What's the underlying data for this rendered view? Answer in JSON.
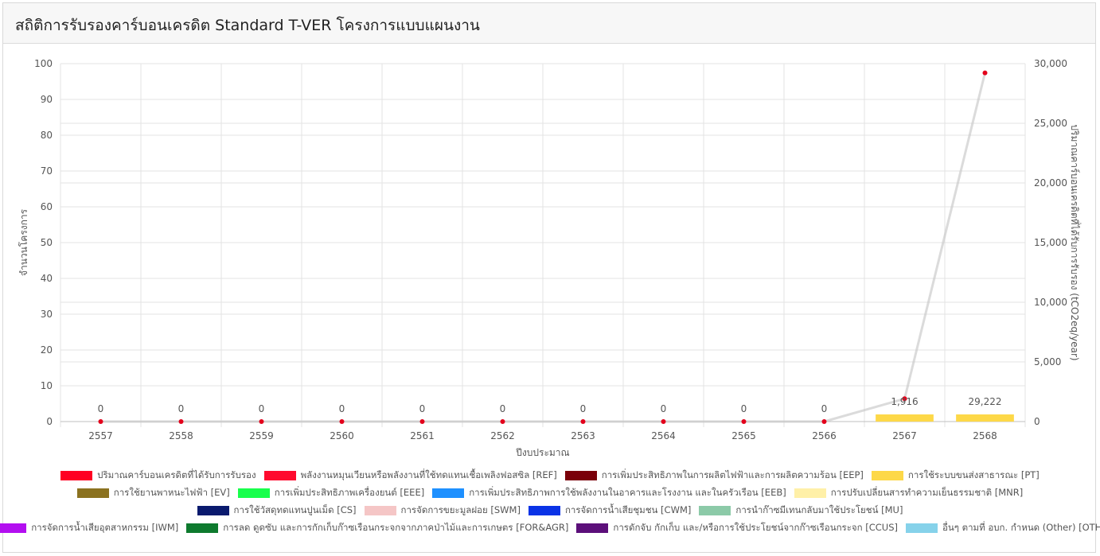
{
  "page": {
    "title": "สถิติการรับรองคาร์บอนเครดิต Standard T-VER โครงการแบบแผนงาน"
  },
  "chart_data": {
    "type": "bar",
    "categories": [
      "2557",
      "2558",
      "2559",
      "2560",
      "2561",
      "2562",
      "2563",
      "2564",
      "2565",
      "2566",
      "2567",
      "2568"
    ],
    "xlabel": "ปีงบประมาณ",
    "ylabel": "จำนวนโครงการ",
    "y2label": "ปริมาณคาร์บอนเครดิตที่ได้รับการรับรอง (tCO2eq/year)",
    "ylim": [
      0,
      100
    ],
    "y2lim": [
      0,
      30000
    ],
    "yticks": [
      "0",
      "10",
      "20",
      "30",
      "40",
      "50",
      "60",
      "70",
      "80",
      "90",
      "100"
    ],
    "y2ticks": [
      "0",
      "5,000",
      "10,000",
      "15,000",
      "20,000",
      "25,000",
      "30,000"
    ],
    "grid": true,
    "legend_position": "bottom",
    "line_series": {
      "name": "ปริมาณคาร์บอนเครดิตที่ได้รับการรับรอง",
      "color": "#ff0022",
      "values": [
        0,
        0,
        0,
        0,
        0,
        0,
        0,
        0,
        0,
        0,
        1916,
        29222
      ],
      "labels": [
        "0",
        "0",
        "0",
        "0",
        "0",
        "0",
        "0",
        "0",
        "0",
        "0",
        "1,916",
        "29,222"
      ]
    },
    "series": [
      {
        "name": "พลังงานหมุนเวียนหรือพลังงานที่ใช้ทดแทนเชื้อเพลิงฟอสซิล [REF]",
        "color": "#ff0a2e",
        "values": [
          0,
          0,
          0,
          0,
          0,
          0,
          0,
          0,
          0,
          0,
          0,
          0
        ]
      },
      {
        "name": "การเพิ่มประสิทธิภาพในการผลิตไฟฟ้าและการผลิตความร้อน [EEP]",
        "color": "#7a0009",
        "values": [
          0,
          0,
          0,
          0,
          0,
          0,
          0,
          0,
          0,
          0,
          0,
          0
        ]
      },
      {
        "name": "การใช้ระบบขนส่งสาธารณะ [PT]",
        "color": "#fdd848",
        "values": [
          0,
          0,
          0,
          0,
          0,
          0,
          0,
          0,
          0,
          0,
          2,
          2
        ]
      },
      {
        "name": "การใช้ยานพาหนะไฟฟ้า [EV]",
        "color": "#8b7220",
        "values": [
          0,
          0,
          0,
          0,
          0,
          0,
          0,
          0,
          0,
          0,
          0,
          0
        ]
      },
      {
        "name": "การเพิ่มประสิทธิภาพเครื่องยนต์ [EEE]",
        "color": "#18ff4c",
        "values": [
          0,
          0,
          0,
          0,
          0,
          0,
          0,
          0,
          0,
          0,
          0,
          0
        ]
      },
      {
        "name": "การเพิ่มประสิทธิภาพการใช้พลังงานในอาคารและโรงงาน และในครัวเรือน [EEB]",
        "color": "#1e90ff",
        "values": [
          0,
          0,
          0,
          0,
          0,
          0,
          0,
          0,
          0,
          0,
          0,
          0
        ]
      },
      {
        "name": "การปรับเปลี่ยนสารทำความเย็นธรรมชาติ [MNR]",
        "color": "#fff0a8",
        "values": [
          0,
          0,
          0,
          0,
          0,
          0,
          0,
          0,
          0,
          0,
          0,
          0
        ]
      },
      {
        "name": "การใช้วัสดุทดแทนปูนเม็ด [CS]",
        "color": "#0a1a6e",
        "values": [
          0,
          0,
          0,
          0,
          0,
          0,
          0,
          0,
          0,
          0,
          0,
          0
        ]
      },
      {
        "name": "การจัดการขยะมูลฝอย [SWM]",
        "color": "#f5c6c6",
        "values": [
          0,
          0,
          0,
          0,
          0,
          0,
          0,
          0,
          0,
          0,
          0,
          0
        ]
      },
      {
        "name": "การจัดการน้ำเสียชุมชน [CWM]",
        "color": "#0a33e6",
        "values": [
          0,
          0,
          0,
          0,
          0,
          0,
          0,
          0,
          0,
          0,
          0,
          0
        ]
      },
      {
        "name": "การนำก๊าซมีเทนกลับมาใช้ประโยชน์ [MU]",
        "color": "#8ccaa8",
        "values": [
          0,
          0,
          0,
          0,
          0,
          0,
          0,
          0,
          0,
          0,
          0,
          0
        ]
      },
      {
        "name": "การจัดการน้ำเสียอุตสาหกรรม [IWM]",
        "color": "#b30ff0",
        "values": [
          0,
          0,
          0,
          0,
          0,
          0,
          0,
          0,
          0,
          0,
          0,
          0
        ]
      },
      {
        "name": "การลด ดูดซับ และการกักเก็บก๊าซเรือนกระจกจากภาคป่าไม้และการเกษตร [FOR&AGR]",
        "color": "#0e7a2e",
        "values": [
          0,
          0,
          0,
          0,
          0,
          0,
          0,
          0,
          0,
          0,
          0,
          0
        ]
      },
      {
        "name": "การดักจับ กักเก็บ และ/หรือการใช้ประโยชน์จากก๊าซเรือนกระจก [CCUS]",
        "color": "#5c0f7a",
        "values": [
          0,
          0,
          0,
          0,
          0,
          0,
          0,
          0,
          0,
          0,
          0,
          0
        ]
      },
      {
        "name": "อื่นๆ ตามที่ อบก. กำหนด (Other) [OTH]",
        "color": "#86d2ea",
        "values": [
          0,
          0,
          0,
          0,
          0,
          0,
          0,
          0,
          0,
          0,
          0,
          0
        ]
      }
    ]
  }
}
